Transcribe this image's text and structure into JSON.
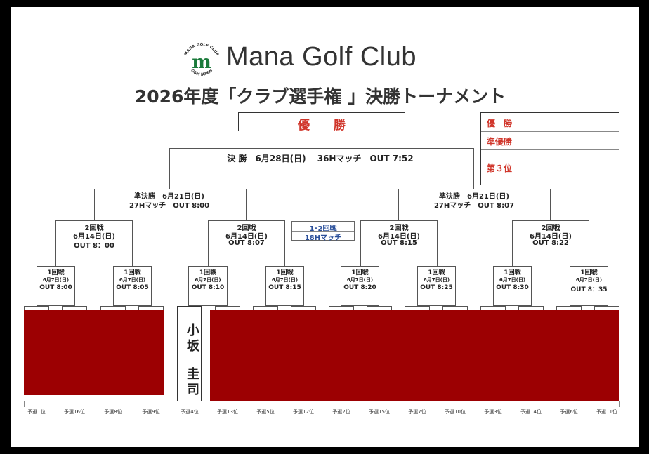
{
  "header": {
    "logo_ring_text": "MANA GOLF CLUB",
    "logo_bottom_text": "GGM JAPAN",
    "logo_letter": "m",
    "club_name": "Mana Golf Club",
    "title": "2026年度「クラブ選手権 」決勝トーナメント"
  },
  "colors": {
    "accent_red": "#d0362b",
    "redaction": "#9c0002",
    "blue_label": "#2a4f9a"
  },
  "champion_label": "優　　勝",
  "results_table": [
    {
      "label": "優　勝",
      "value": ""
    },
    {
      "label": "準優勝",
      "value": ""
    },
    {
      "label": "第３位",
      "value": ""
    }
  ],
  "final": {
    "text": "決 勝　6月28日(日)　 36Hマッチ　OUT 7:52"
  },
  "semis": [
    {
      "line1": "準決勝　6月21日(日)",
      "line2": "27Hマッチ　OUT 8:00"
    },
    {
      "line1": "準決勝　6月21日(日)",
      "line2": "27Hマッチ　OUT 8:07"
    }
  ],
  "round2_format": {
    "line1": "1･2回戦",
    "line2": "18Hマッチ"
  },
  "round2": [
    {
      "name": "2回戦",
      "date": "6月14日(日)",
      "time": "OUT 8：00"
    },
    {
      "name": "2回戦",
      "date": "6月14日(日)",
      "time": "OUT 8:07"
    },
    {
      "name": "2回戦",
      "date": "6月14日(日)",
      "time": "OUT 8:15"
    },
    {
      "name": "2回戦",
      "date": "6月14日(日)",
      "time": "OUT 8:22"
    }
  ],
  "round1": [
    {
      "name": "1回戦",
      "date": "6月7日(日)",
      "time": "OUT 8:00"
    },
    {
      "name": "1回戦",
      "date": "6月7日(日)",
      "time": "OUT 8:05"
    },
    {
      "name": "1回戦",
      "date": "6月7日(日)",
      "time": "OUT 8:10"
    },
    {
      "name": "1回戦",
      "date": "6月7日(日)",
      "time": "OUT 8:15"
    },
    {
      "name": "1回戦",
      "date": "6月7日(日)",
      "time": "OUT 8:20"
    },
    {
      "name": "1回戦",
      "date": "6月7日(日)",
      "time": "OUT 8:25"
    },
    {
      "name": "1回戦",
      "date": "6月7日(日)",
      "time": "OUT 8:30"
    },
    {
      "name": "1回戦",
      "date": "6月7日(日)",
      "time": "OUT 8：35"
    }
  ],
  "player": {
    "name_line1": "小坂",
    "name_line2": "圭司"
  },
  "seeds": [
    "予選1位",
    "予選16位",
    "予選8位",
    "予選9位",
    "予選4位",
    "予選13位",
    "予選5位",
    "予選12位",
    "予選2位",
    "予選15位",
    "予選7位",
    "予選10位",
    "予選3位",
    "予選14位",
    "予選6位",
    "予選11位"
  ]
}
